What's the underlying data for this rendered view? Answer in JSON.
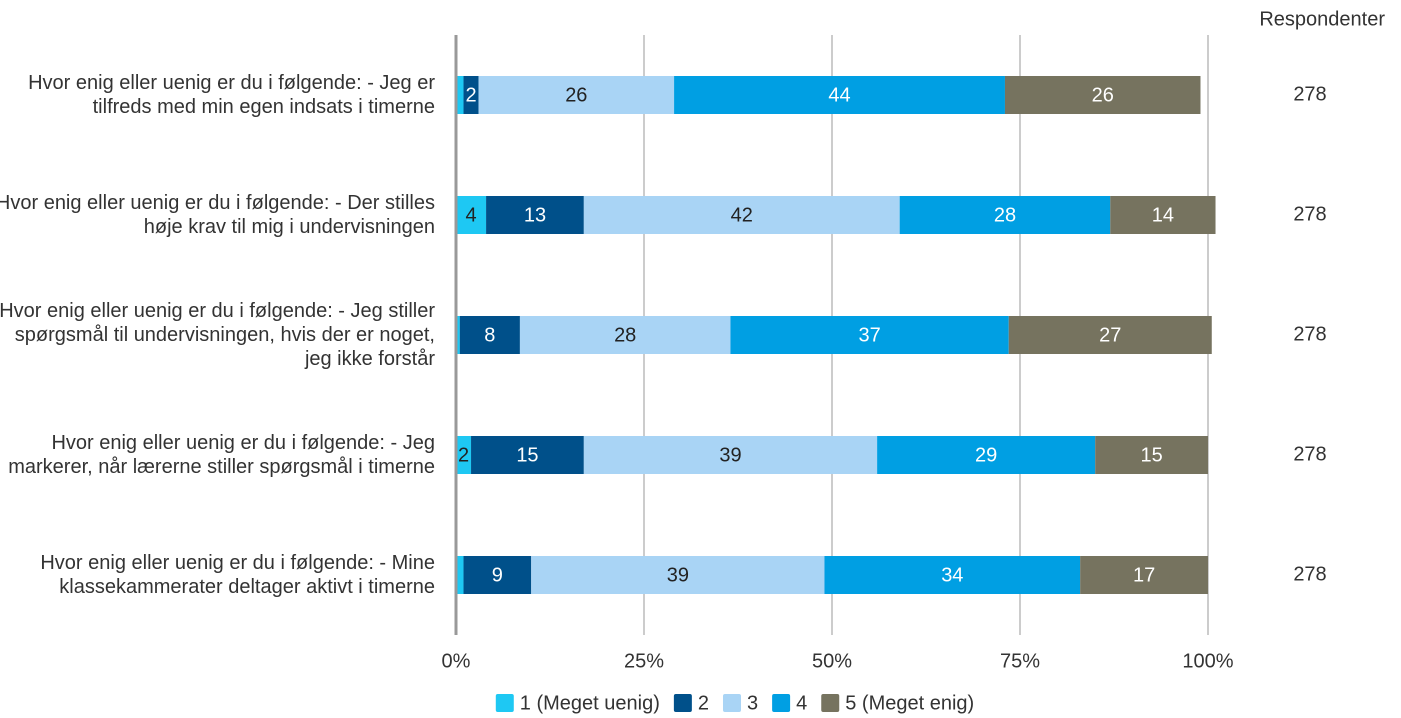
{
  "chart_data": {
    "type": "stacked-barh",
    "categories": [
      "Hvor enig eller uenig er du i følgende: - Jeg er tilfreds med min egen indsats i timerne",
      "Hvor enig eller uenig er du i følgende: - Der stilles høje krav til mig i undervisningen",
      "Hvor enig eller uenig er du i følgende: - Jeg stiller spørgsmål til undervisningen, hvis der er noget, jeg ikke forstår",
      "Hvor enig eller uenig er du i følgende: - Jeg markerer, når lærerne stiller spørgsmål i timerne",
      "Hvor enig eller uenig er du i følgende: - Mine klassekammerater deltager aktivt i timerne"
    ],
    "series": [
      {
        "name": "1 (Meget uenig)",
        "color": "#1ec8f3",
        "label_color": "#222222",
        "values": [
          1,
          4,
          0.5,
          2,
          1
        ]
      },
      {
        "name": "2",
        "color": "#00508a",
        "label_color": "#ffffff",
        "values": [
          2,
          13,
          8,
          15,
          9
        ]
      },
      {
        "name": "3",
        "color": "#a9d4f5",
        "label_color": "#222222",
        "values": [
          26,
          42,
          28,
          39,
          39
        ]
      },
      {
        "name": "4",
        "color": "#009fe3",
        "label_color": "#ffffff",
        "values": [
          44,
          28,
          37,
          29,
          34
        ]
      },
      {
        "name": "5 (Meget enig)",
        "color": "#76735f",
        "label_color": "#ffffff",
        "values": [
          26,
          14,
          27,
          15,
          17
        ]
      }
    ],
    "xlim": [
      0,
      100
    ],
    "xticks": [
      {
        "value": 0,
        "label": "0%"
      },
      {
        "value": 25,
        "label": "25%"
      },
      {
        "value": 50,
        "label": "50%"
      },
      {
        "value": 75,
        "label": "75%"
      },
      {
        "value": 100,
        "label": "100%"
      }
    ],
    "grid": true,
    "legend": "bottom",
    "respondents": {
      "title": "Respondenter",
      "values": [
        278,
        278,
        278,
        278,
        278
      ]
    }
  }
}
